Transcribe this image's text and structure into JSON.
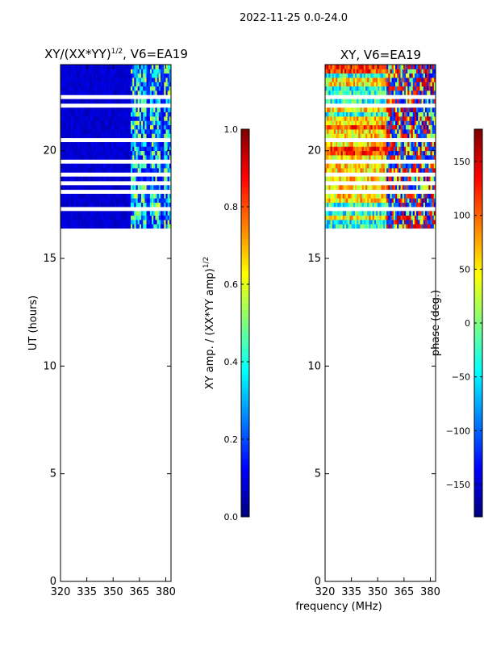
{
  "suptitle": "2022-11-25 0.0-24.0",
  "xlabel": "frequency (MHz)",
  "colors": {
    "jet_stops": [
      "#00007f",
      "#0000ff",
      "#007fff",
      "#00ffff",
      "#7fff7f",
      "#ffff00",
      "#ff7f00",
      "#ff0000",
      "#7f0000"
    ]
  },
  "chart_data": [
    {
      "type": "heatmap",
      "title_main": "XY/(XX*YY)",
      "title_sup": "1/2",
      "title_tail": ", V6=EA19",
      "ylabel": "UT (hours)",
      "xlim": [
        320,
        383
      ],
      "ylim": [
        0,
        24
      ],
      "xticks": [
        320,
        335,
        350,
        365,
        380
      ],
      "yticks": [
        0,
        5,
        10,
        15,
        20
      ],
      "data_time_range_hours": [
        16.4,
        24.0
      ],
      "dominant_low_band_MHz": [
        320,
        359
      ],
      "active_band_MHz": [
        360,
        383
      ],
      "colorbar": {
        "label_main": "XY amp. / (XX*YY amp)",
        "label_sup": "1/2",
        "range": [
          0.0,
          1.0
        ],
        "ticks": [
          "0.0",
          "0.2",
          "0.4",
          "0.6",
          "0.8",
          "1.0"
        ]
      }
    },
    {
      "type": "heatmap",
      "title": "XY, V6=EA19",
      "ylabel": "",
      "xlim": [
        320,
        383
      ],
      "ylim": [
        0,
        24
      ],
      "xticks": [
        320,
        335,
        350,
        365,
        380
      ],
      "yticks": [
        0,
        5,
        10,
        15,
        20
      ],
      "data_time_range_hours": [
        16.4,
        24.0
      ],
      "colorbar": {
        "label": "phase (deg.)",
        "range": [
          -180,
          180
        ],
        "ticks": [
          "-150",
          "-100",
          "-50",
          "0",
          "50",
          "100",
          "150"
        ]
      }
    }
  ]
}
